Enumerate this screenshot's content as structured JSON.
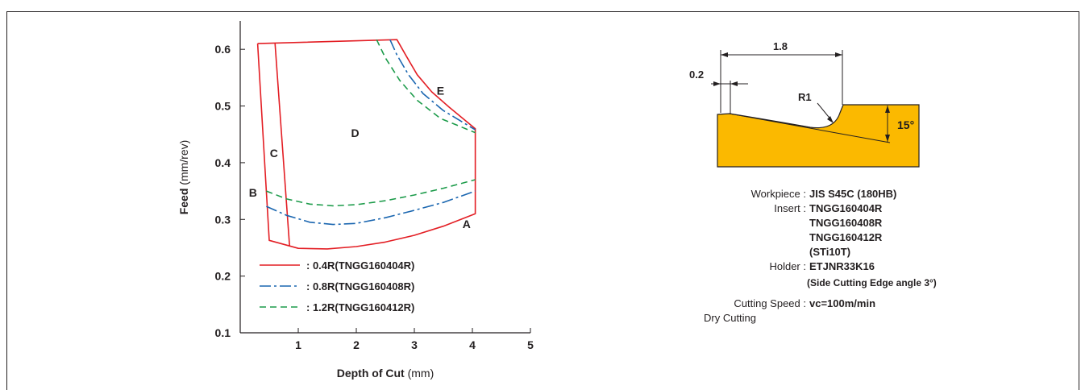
{
  "chart_data": {
    "type": "line",
    "xlabel_bold": "Depth of Cut",
    "xlabel_unit": "(mm)",
    "ylabel_bold": "Feed",
    "ylabel_unit": "(mm/rev)",
    "xlim": [
      0,
      5
    ],
    "ylim": [
      0.1,
      0.65
    ],
    "x_ticks": [
      1,
      2,
      3,
      4,
      5
    ],
    "y_ticks": [
      0.1,
      0.2,
      0.3,
      0.4,
      0.5,
      0.6
    ],
    "regions": [
      {
        "label": "A",
        "x": 3.9,
        "y": 0.285
      },
      {
        "label": "B",
        "x": 0.22,
        "y": 0.34
      },
      {
        "label": "C",
        "x": 0.58,
        "y": 0.41
      },
      {
        "label": "D",
        "x": 1.98,
        "y": 0.445
      },
      {
        "label": "E",
        "x": 3.45,
        "y": 0.52
      }
    ],
    "series": [
      {
        "name": "0.4R(TNGG160404R)",
        "color": "#e31e24",
        "style": "solid",
        "boundary": [
          [
            0.3,
            0.61
          ],
          [
            2.7,
            0.617
          ],
          [
            2.85,
            0.59
          ],
          [
            3.05,
            0.555
          ],
          [
            3.3,
            0.525
          ],
          [
            3.6,
            0.498
          ],
          [
            4.05,
            0.46
          ],
          [
            4.05,
            0.31
          ],
          [
            3.5,
            0.288
          ],
          [
            3.0,
            0.272
          ],
          [
            2.5,
            0.26
          ],
          [
            2.0,
            0.252
          ],
          [
            1.5,
            0.248
          ],
          [
            1.0,
            0.249
          ],
          [
            0.5,
            0.263
          ],
          [
            0.3,
            0.61
          ]
        ],
        "divider": [
          [
            0.6,
            0.61
          ],
          [
            0.85,
            0.253
          ]
        ]
      },
      {
        "name": "0.8R(TNGG160408R)",
        "color": "#1a66b0",
        "style": "dashdot",
        "lower": [
          [
            0.45,
            0.323
          ],
          [
            0.8,
            0.307
          ],
          [
            1.2,
            0.295
          ],
          [
            1.6,
            0.291
          ],
          [
            2.0,
            0.293
          ],
          [
            2.5,
            0.303
          ],
          [
            3.0,
            0.316
          ],
          [
            3.5,
            0.33
          ],
          [
            4.05,
            0.35
          ]
        ],
        "upper": [
          [
            2.58,
            0.617
          ],
          [
            2.7,
            0.59
          ],
          [
            2.9,
            0.555
          ],
          [
            3.15,
            0.522
          ],
          [
            3.5,
            0.492
          ],
          [
            4.05,
            0.458
          ]
        ]
      },
      {
        "name": "1.2R(TNGG160412R)",
        "color": "#1c9b4a",
        "style": "dashed",
        "lower": [
          [
            0.45,
            0.35
          ],
          [
            0.8,
            0.336
          ],
          [
            1.2,
            0.327
          ],
          [
            1.6,
            0.324
          ],
          [
            2.0,
            0.326
          ],
          [
            2.5,
            0.333
          ],
          [
            3.0,
            0.343
          ],
          [
            3.5,
            0.355
          ],
          [
            4.05,
            0.37
          ]
        ],
        "upper": [
          [
            2.35,
            0.617
          ],
          [
            2.5,
            0.585
          ],
          [
            2.75,
            0.545
          ],
          [
            3.05,
            0.51
          ],
          [
            3.45,
            0.478
          ],
          [
            4.05,
            0.453
          ]
        ]
      }
    ]
  },
  "diagram": {
    "dim_1_8": "1.8",
    "dim_0_2": "0.2",
    "dim_r1": "R1",
    "dim_angle": "15°",
    "insert_color": "#fbb900"
  },
  "specs": {
    "workpiece_label": "Workpiece :",
    "workpiece_value": "JIS S45C  (180HB)",
    "insert_label": "Insert :",
    "insert_values": [
      "TNGG160404R",
      "TNGG160408R",
      "TNGG160412R",
      "(STi10T)"
    ],
    "holder_label": "Holder :",
    "holder_value": "ETJNR33K16",
    "holder_note": "(Side Cutting Edge angle 3°)",
    "speed_label": "Cutting Speed :",
    "speed_value": "vc=100m/min",
    "dry": "Dry Cutting"
  }
}
